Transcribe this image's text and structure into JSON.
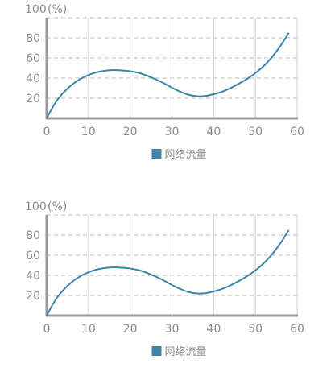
{
  "chart_data": [
    {
      "type": "line",
      "top_label": "100",
      "unit_label": "(%)",
      "x_ticks": [
        "0",
        "10",
        "20",
        "30",
        "40",
        "50",
        "60"
      ],
      "y_ticks": [
        "20",
        "40",
        "60",
        "80"
      ],
      "xlim": [
        0,
        60
      ],
      "ylim": [
        0,
        100
      ],
      "grid": {
        "vertical": "solid",
        "horizontal": "dashed"
      },
      "legend_position": "bottom-center",
      "series": [
        {
          "name": "网络流量",
          "color": "#3a85a8",
          "x": [
            0,
            2,
            4,
            6,
            8,
            10,
            12,
            14,
            16,
            18,
            20,
            22,
            24,
            26,
            28,
            30,
            32,
            34,
            36,
            38,
            40,
            42,
            44,
            46,
            48,
            50,
            52,
            54,
            56,
            58
          ],
          "y": [
            0,
            15,
            25.5,
            33.3,
            39,
            43,
            45.8,
            47.3,
            48,
            47.6,
            46.8,
            45.2,
            42.5,
            39,
            35,
            30.5,
            26.5,
            23.4,
            22,
            22.2,
            24,
            26.5,
            30,
            34.3,
            39.2,
            45,
            52,
            61,
            72,
            85
          ]
        }
      ]
    },
    {
      "type": "line",
      "top_label": "100",
      "unit_label": "(%)",
      "x_ticks": [
        "0",
        "10",
        "20",
        "30",
        "40",
        "50",
        "60"
      ],
      "y_ticks": [
        "20",
        "40",
        "60",
        "80"
      ],
      "xlim": [
        0,
        60
      ],
      "ylim": [
        0,
        100
      ],
      "grid": {
        "vertical": "solid",
        "horizontal": "dashed"
      },
      "legend_position": "bottom-center",
      "series": [
        {
          "name": "网络流量",
          "color": "#3a85a8",
          "x": [
            0,
            2,
            4,
            6,
            8,
            10,
            12,
            14,
            16,
            18,
            20,
            22,
            24,
            26,
            28,
            30,
            32,
            34,
            36,
            38,
            40,
            42,
            44,
            46,
            48,
            50,
            52,
            54,
            56,
            58
          ],
          "y": [
            0,
            15,
            25.5,
            33.3,
            39,
            43,
            45.8,
            47.3,
            48,
            47.6,
            46.8,
            45.2,
            42.5,
            39,
            35,
            30.5,
            26.5,
            23.4,
            22,
            22.2,
            24,
            26.5,
            30,
            34.3,
            39.2,
            45,
            52,
            61,
            72,
            85
          ]
        }
      ]
    }
  ]
}
